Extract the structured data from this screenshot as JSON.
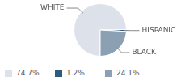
{
  "chart_data": {
    "type": "pie",
    "categories": [
      "WHITE",
      "HISPANIC",
      "BLACK"
    ],
    "values": [
      74.7,
      1.2,
      24.1
    ],
    "value_labels": [
      "74.7%",
      "1.2%",
      "24.1%"
    ],
    "colors": [
      "#dde2ea",
      "#2e5b7d",
      "#8ca0b3"
    ]
  }
}
